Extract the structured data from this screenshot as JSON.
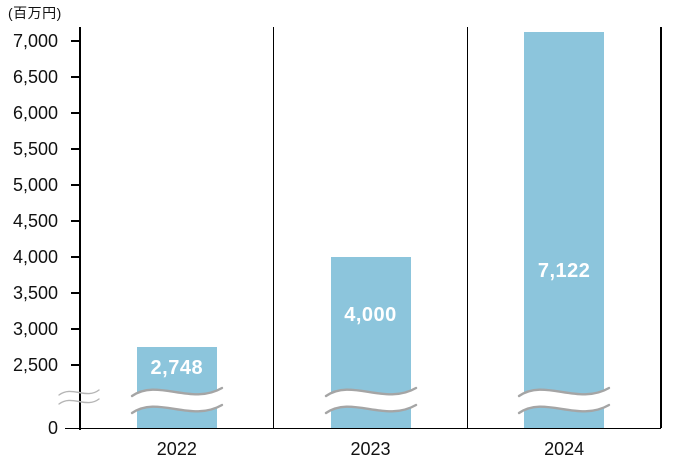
{
  "chart_data": {
    "type": "bar",
    "title": "",
    "unit_label": "(百万円)",
    "categories": [
      "2022",
      "2023",
      "2024"
    ],
    "values": [
      2748,
      4000,
      7122
    ],
    "value_labels": [
      "2,748",
      "4,000",
      "7,122"
    ],
    "y_ticks": [
      7000,
      6500,
      6000,
      5500,
      5000,
      4500,
      4000,
      3500,
      3000,
      2500,
      0
    ],
    "y_tick_labels": [
      "7,000",
      "6,500",
      "6,000",
      "5,500",
      "5,000",
      "4,500",
      "4,000",
      "3,500",
      "3,000",
      "2,500",
      "0"
    ],
    "ylim": [
      0,
      7200
    ],
    "axis_break": true,
    "axis_break_range": [
      0,
      2500
    ],
    "grid": false,
    "legend": false,
    "colors": {
      "bar_fill": "#8cc5dc",
      "value_label_text": "#ffffff",
      "axis_line": "#000000",
      "tick_text": "#111111",
      "bar_break_wave": "#a5a5a5",
      "axis_break_wave": "#b5b5b5",
      "background": "#ffffff"
    }
  }
}
